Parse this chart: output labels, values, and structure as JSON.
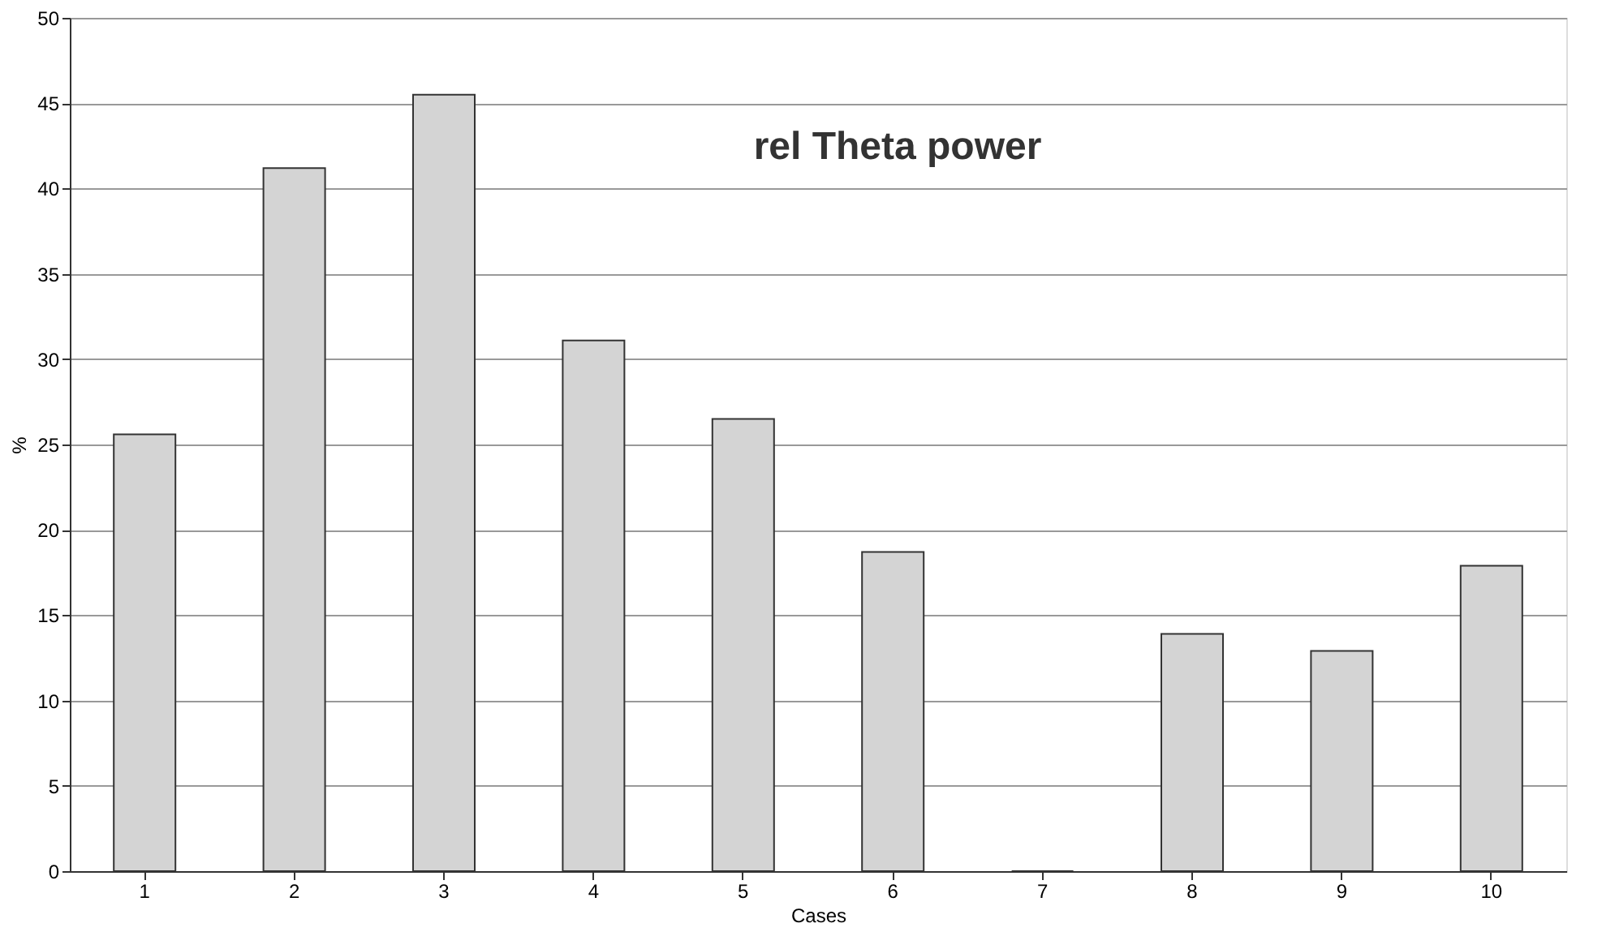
{
  "chart_data": {
    "type": "bar",
    "title": "rel Theta power",
    "xlabel": "Cases",
    "ylabel": "%",
    "categories": [
      "1",
      "2",
      "3",
      "4",
      "5",
      "6",
      "7",
      "8",
      "9",
      "10"
    ],
    "values": [
      25.6,
      41.2,
      45.5,
      31.1,
      26.5,
      18.7,
      0,
      13.9,
      12.9,
      17.9
    ],
    "color": "#d4d4d4",
    "ylim": [
      0,
      50
    ],
    "yticks": [
      0,
      5,
      10,
      15,
      20,
      25,
      30,
      35,
      40,
      45,
      50
    ],
    "grid": "y"
  }
}
